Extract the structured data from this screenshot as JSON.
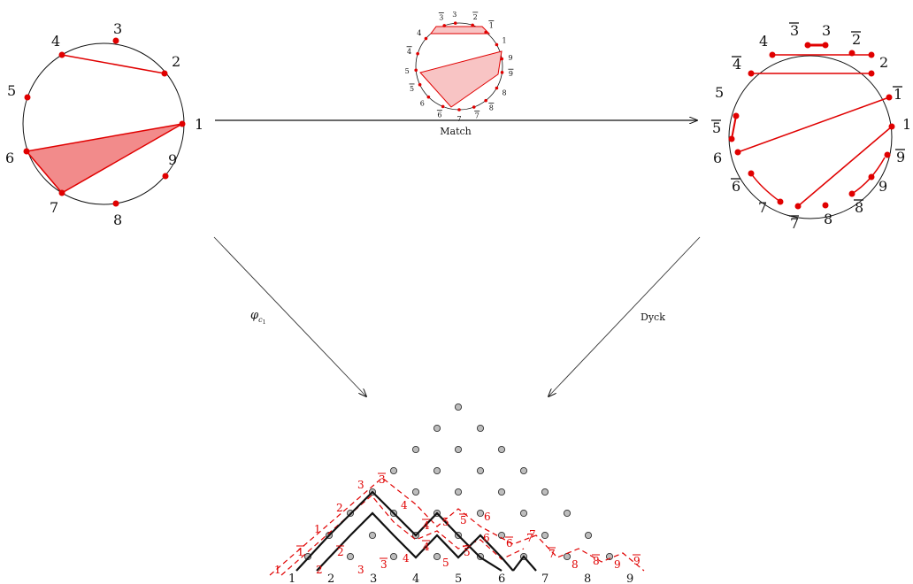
{
  "left_circle": {
    "labels": [
      "1",
      "2",
      "3",
      "4",
      "5",
      "6",
      "7",
      "8",
      "9"
    ]
  },
  "small_circle": {
    "labels": [
      "3",
      "2",
      "1",
      "1",
      "9",
      "9",
      "8",
      "8",
      "7",
      "7",
      "6",
      "6",
      "5",
      "5",
      "4",
      "4",
      "3"
    ],
    "bars": [
      false,
      true,
      true,
      false,
      false,
      true,
      false,
      true,
      true,
      false,
      true,
      false,
      true,
      false,
      true,
      false,
      true
    ]
  },
  "right_circle": {
    "labels": [
      "3",
      "2",
      "2",
      "1",
      "1",
      "9",
      "9",
      "8",
      "8",
      "7",
      "7",
      "6",
      "6",
      "5",
      "5",
      "4",
      "4",
      "3"
    ],
    "bars": [
      false,
      true,
      false,
      true,
      false,
      true,
      false,
      true,
      false,
      true,
      false,
      true,
      false,
      true,
      false,
      true,
      false,
      true
    ]
  },
  "arrows": {
    "match": "Match",
    "phi": "φ",
    "phi_sub": "c",
    "phi_subsub": "1",
    "dyck": "Dyck"
  },
  "lattice": {
    "black_labels": [
      "1",
      "2",
      "3",
      "4",
      "5",
      "6",
      "7",
      "8",
      "9"
    ],
    "red_labels": [
      "1",
      "1",
      "2",
      "2",
      "3",
      "3",
      "4",
      "4",
      "5",
      "5",
      "6",
      "6",
      "7",
      "7",
      "8",
      "8",
      "9",
      "9"
    ],
    "red_bars": [
      false,
      true,
      false,
      true,
      false,
      true,
      false,
      true,
      false,
      true,
      false,
      true,
      false,
      true,
      false,
      true,
      false,
      true
    ],
    "upper_red_labels": [
      "1",
      "2",
      "3",
      "3",
      "4",
      "4",
      "5",
      "5",
      "6",
      "7"
    ],
    "upper_red_bars": [
      false,
      false,
      false,
      true,
      false,
      true,
      false,
      true,
      false,
      false
    ]
  },
  "colors": {
    "red": "#e00000",
    "fill_left": "#f28b8b",
    "fill_small": "#f8c4c4",
    "node": "#bdbdbd"
  }
}
